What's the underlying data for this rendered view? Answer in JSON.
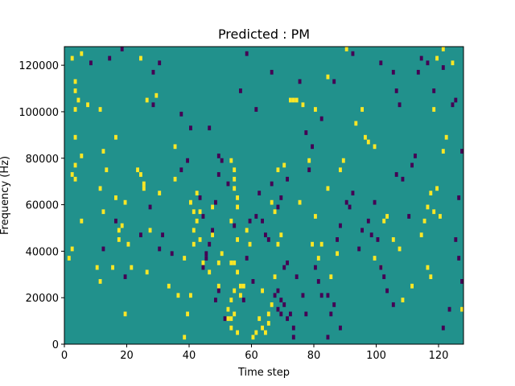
{
  "chart_data": {
    "type": "heatmap",
    "title": "Predicted : PM",
    "xlabel": "Time step",
    "ylabel": "Frequency (Hz)",
    "xlim": [
      0,
      128
    ],
    "ylim": [
      0,
      128000
    ],
    "grid": false,
    "x_ticks": [
      0,
      20,
      40,
      60,
      80,
      100,
      120
    ],
    "x_tick_labels": [
      "0",
      "20",
      "40",
      "60",
      "80",
      "100",
      "120"
    ],
    "y_ticks": [
      0,
      20000,
      40000,
      60000,
      80000,
      100000,
      120000
    ],
    "y_tick_labels": [
      "0",
      "20000",
      "40000",
      "60000",
      "80000",
      "100000",
      "120000"
    ],
    "colormap": {
      "background": "#21918c",
      "high": "#fde725",
      "low": "#440154"
    },
    "high_cells": [
      [
        2,
        123000
      ],
      [
        5,
        125000
      ],
      [
        3,
        113000
      ],
      [
        3,
        109000
      ],
      [
        4,
        105000
      ],
      [
        3,
        101000
      ],
      [
        7,
        103000
      ],
      [
        3,
        89000
      ],
      [
        3,
        77000
      ],
      [
        2,
        73000
      ],
      [
        3,
        71000
      ],
      [
        5,
        81000
      ],
      [
        1,
        37000
      ],
      [
        2,
        41000
      ],
      [
        5,
        53000
      ],
      [
        11,
        27000
      ],
      [
        10,
        33000
      ],
      [
        15,
        33000
      ],
      [
        11,
        67000
      ],
      [
        12,
        57000
      ],
      [
        12,
        83000
      ],
      [
        11,
        101000
      ],
      [
        13,
        75000
      ],
      [
        16,
        89000
      ],
      [
        16,
        63000
      ],
      [
        17,
        49000
      ],
      [
        17,
        45000
      ],
      [
        18,
        51000
      ],
      [
        19,
        61000
      ],
      [
        20,
        43000
      ],
      [
        21,
        33000
      ],
      [
        19,
        13000
      ],
      [
        23,
        75000
      ],
      [
        24,
        73000
      ],
      [
        24,
        123000
      ],
      [
        25,
        69000
      ],
      [
        25,
        67000
      ],
      [
        27,
        49000
      ],
      [
        26,
        105000
      ],
      [
        29,
        107000
      ],
      [
        30,
        65000
      ],
      [
        26,
        31000
      ],
      [
        33,
        25000
      ],
      [
        35,
        71000
      ],
      [
        35,
        85000
      ],
      [
        36,
        21000
      ],
      [
        39,
        13000
      ],
      [
        38,
        3000
      ],
      [
        38,
        37000
      ],
      [
        40,
        21000
      ],
      [
        40,
        61000
      ],
      [
        41,
        57000
      ],
      [
        41,
        49000
      ],
      [
        41,
        43000
      ],
      [
        42,
        53000
      ],
      [
        43,
        57000
      ],
      [
        42,
        65000
      ],
      [
        43,
        45000
      ],
      [
        44,
        35000
      ],
      [
        47,
        59000
      ],
      [
        46,
        31000
      ],
      [
        47,
        47000
      ],
      [
        49,
        35000
      ],
      [
        49,
        25000
      ],
      [
        50,
        39000
      ],
      [
        52,
        11000
      ],
      [
        52,
        15000
      ],
      [
        53,
        19000
      ],
      [
        53,
        7000
      ],
      [
        54,
        23000
      ],
      [
        53,
        79000
      ],
      [
        54,
        75000
      ],
      [
        54,
        71000
      ],
      [
        54,
        67000
      ],
      [
        55,
        63000
      ],
      [
        55,
        59000
      ],
      [
        53,
        53000
      ],
      [
        55,
        45000
      ],
      [
        54,
        35000
      ],
      [
        55,
        31000
      ],
      [
        56,
        21000
      ],
      [
        57,
        25000
      ],
      [
        58,
        49000
      ],
      [
        59,
        43000
      ],
      [
        60,
        3000
      ],
      [
        61,
        5000
      ],
      [
        63,
        7000
      ],
      [
        65,
        13000
      ],
      [
        66,
        17000
      ],
      [
        67,
        29000
      ],
      [
        68,
        43000
      ],
      [
        69,
        47000
      ],
      [
        65,
        9000
      ],
      [
        63,
        23000
      ],
      [
        62,
        11000
      ],
      [
        64,
        5000
      ],
      [
        66,
        61000
      ],
      [
        67,
        57000
      ],
      [
        68,
        75000
      ],
      [
        70,
        77000
      ],
      [
        72,
        105000
      ],
      [
        73,
        105000
      ],
      [
        74,
        105000
      ],
      [
        75,
        61000
      ],
      [
        76,
        103000
      ],
      [
        78,
        79000
      ],
      [
        79,
        43000
      ],
      [
        80,
        55000
      ],
      [
        81,
        37000
      ],
      [
        82,
        43000
      ],
      [
        85,
        29000
      ],
      [
        87,
        39000
      ],
      [
        84,
        67000
      ],
      [
        88,
        75000
      ],
      [
        89,
        79000
      ],
      [
        93,
        95000
      ],
      [
        95,
        101000
      ],
      [
        96,
        89000
      ],
      [
        97,
        87000
      ],
      [
        99,
        85000
      ],
      [
        99,
        37000
      ],
      [
        101,
        33000
      ],
      [
        102,
        53000
      ],
      [
        103,
        55000
      ],
      [
        105,
        45000
      ],
      [
        107,
        41000
      ],
      [
        108,
        19000
      ],
      [
        111,
        25000
      ],
      [
        114,
        47000
      ],
      [
        115,
        53000
      ],
      [
        116,
        59000
      ],
      [
        117,
        65000
      ],
      [
        118,
        57000
      ],
      [
        119,
        67000
      ],
      [
        120,
        55000
      ],
      [
        121,
        83000
      ],
      [
        122,
        89000
      ],
      [
        118,
        101000
      ],
      [
        119,
        123000
      ],
      [
        121,
        127000
      ],
      [
        124,
        121000
      ],
      [
        127,
        15000
      ],
      [
        116,
        33000
      ],
      [
        117,
        29000
      ],
      [
        90,
        127000
      ],
      [
        84,
        115000
      ],
      [
        80,
        101000
      ],
      [
        53,
        35000
      ],
      [
        56,
        25000
      ],
      [
        54,
        13000
      ],
      [
        53,
        11000
      ],
      [
        55,
        5000
      ]
    ],
    "low_cells": [
      [
        8,
        121000
      ],
      [
        14,
        123000
      ],
      [
        18,
        127000
      ],
      [
        28,
        117000
      ],
      [
        28,
        103000
      ],
      [
        30,
        121000
      ],
      [
        37,
        99000
      ],
      [
        40,
        93000
      ],
      [
        46,
        93000
      ],
      [
        43,
        63000
      ],
      [
        48,
        61000
      ],
      [
        49,
        73000
      ],
      [
        52,
        69000
      ],
      [
        49,
        81000
      ],
      [
        50,
        79000
      ],
      [
        47,
        49000
      ],
      [
        46,
        43000
      ],
      [
        45,
        39000
      ],
      [
        45,
        37000
      ],
      [
        44,
        33000
      ],
      [
        48,
        19000
      ],
      [
        51,
        11000
      ],
      [
        49,
        23000
      ],
      [
        57,
        19000
      ],
      [
        60,
        27000
      ],
      [
        58,
        37000
      ],
      [
        59,
        53000
      ],
      [
        61,
        55000
      ],
      [
        62,
        65000
      ],
      [
        63,
        53000
      ],
      [
        64,
        47000
      ],
      [
        65,
        45000
      ],
      [
        66,
        69000
      ],
      [
        68,
        59000
      ],
      [
        69,
        63000
      ],
      [
        71,
        71000
      ],
      [
        70,
        33000
      ],
      [
        71,
        35000
      ],
      [
        68,
        15000
      ],
      [
        69,
        13000
      ],
      [
        71,
        11000
      ],
      [
        72,
        13000
      ],
      [
        73,
        7000
      ],
      [
        73,
        3000
      ],
      [
        74,
        29000
      ],
      [
        76,
        21000
      ],
      [
        77,
        13000
      ],
      [
        78,
        75000
      ],
      [
        79,
        85000
      ],
      [
        80,
        33000
      ],
      [
        81,
        27000
      ],
      [
        82,
        21000
      ],
      [
        84,
        21000
      ],
      [
        85,
        13000
      ],
      [
        86,
        17000
      ],
      [
        87,
        45000
      ],
      [
        88,
        51000
      ],
      [
        90,
        61000
      ],
      [
        91,
        59000
      ],
      [
        92,
        65000
      ],
      [
        94,
        41000
      ],
      [
        95,
        49000
      ],
      [
        97,
        53000
      ],
      [
        98,
        47000
      ],
      [
        99,
        61000
      ],
      [
        100,
        45000
      ],
      [
        101,
        33000
      ],
      [
        102,
        29000
      ],
      [
        103,
        23000
      ],
      [
        105,
        17000
      ],
      [
        106,
        73000
      ],
      [
        108,
        71000
      ],
      [
        110,
        55000
      ],
      [
        111,
        77000
      ],
      [
        112,
        81000
      ],
      [
        113,
        117000
      ],
      [
        114,
        123000
      ],
      [
        116,
        121000
      ],
      [
        118,
        109000
      ],
      [
        121,
        119000
      ],
      [
        124,
        103000
      ],
      [
        125,
        105000
      ],
      [
        127,
        83000
      ],
      [
        126,
        63000
      ],
      [
        125,
        45000
      ],
      [
        126,
        37000
      ],
      [
        127,
        27000
      ],
      [
        123,
        15000
      ],
      [
        121,
        7000
      ],
      [
        107,
        103000
      ],
      [
        106,
        109000
      ],
      [
        105,
        117000
      ],
      [
        101,
        121000
      ],
      [
        92,
        125000
      ],
      [
        88,
        7000
      ],
      [
        84,
        3000
      ],
      [
        86,
        113000
      ],
      [
        82,
        97000
      ],
      [
        77,
        91000
      ],
      [
        75,
        113000
      ],
      [
        66,
        117000
      ],
      [
        61,
        101000
      ],
      [
        58,
        125000
      ],
      [
        56,
        109000
      ],
      [
        12,
        41000
      ],
      [
        16,
        53000
      ],
      [
        19,
        29000
      ],
      [
        24,
        47000
      ],
      [
        27,
        59000
      ],
      [
        31,
        47000
      ],
      [
        34,
        39000
      ],
      [
        30,
        41000
      ],
      [
        67,
        21000
      ],
      [
        68,
        23000
      ],
      [
        69,
        19000
      ],
      [
        70,
        17000
      ],
      [
        54,
        51000
      ],
      [
        44,
        55000
      ],
      [
        37,
        75000
      ],
      [
        39,
        79000
      ]
    ]
  }
}
